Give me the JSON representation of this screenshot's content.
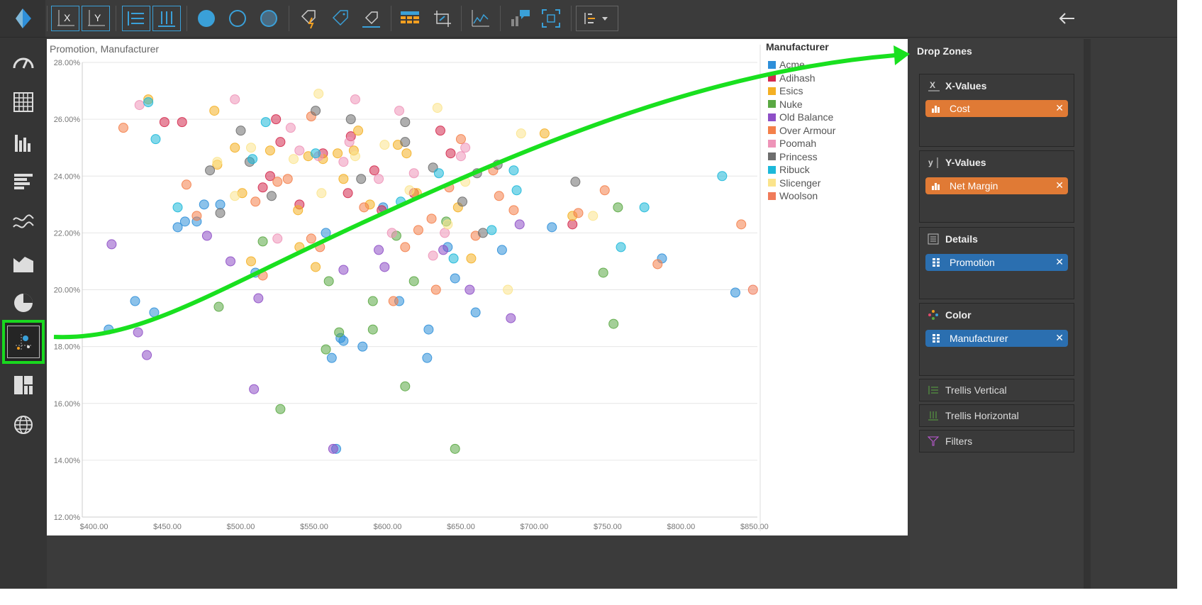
{
  "toolbar": {
    "buttons": [
      "x-axis-icon",
      "y-axis-icon",
      "trellis-rows-icon",
      "trellis-cols-icon",
      "filled-circle-icon",
      "hollow-circle-icon",
      "outlined-circle-icon",
      "tag-lightning-icon",
      "tag-icon",
      "tag-base-icon",
      "table-grid-icon",
      "crop-icon",
      "trend-icon",
      "chart-comment-icon",
      "fit-screen-icon",
      "sort-dropdown-icon"
    ],
    "back_icon": "back-arrow-icon"
  },
  "sidebar": {
    "items": [
      "gauge-icon",
      "grid-icon",
      "column-chart-icon",
      "bar-chart-icon",
      "wave-icon",
      "area-chart-icon",
      "pie-chart-icon",
      "scatter-chart-icon",
      "treemap-icon",
      "globe-icon"
    ],
    "active_index": 7
  },
  "chart": {
    "title": "Promotion, Manufacturer"
  },
  "chart_data": {
    "type": "scatter",
    "title": "Promotion, Manufacturer",
    "xlim": [
      392,
      852
    ],
    "ylim": [
      0.12,
      0.28
    ],
    "x_ticks": [
      "$400.00",
      "$450.00",
      "$500.00",
      "$550.00",
      "$600.00",
      "$650.00",
      "$700.00",
      "$750.00",
      "$800.00",
      "$850.00"
    ],
    "x_tick_values": [
      400,
      450,
      500,
      550,
      600,
      650,
      700,
      750,
      800,
      850
    ],
    "y_ticks": [
      "12.00%",
      "14.00%",
      "16.00%",
      "18.00%",
      "20.00%",
      "22.00%",
      "24.00%",
      "26.00%",
      "28.00%"
    ],
    "y_tick_values": [
      0.12,
      0.14,
      0.16,
      0.18,
      0.2,
      0.22,
      0.24,
      0.26,
      0.28
    ],
    "legend_title": "Manufacturer",
    "legend_position": "right",
    "series": [
      {
        "name": "Acme",
        "color": "#2e8fd9",
        "points": [
          [
            410,
            0.186
          ],
          [
            428,
            0.196
          ],
          [
            441,
            0.192
          ],
          [
            457,
            0.222
          ],
          [
            462,
            0.224
          ],
          [
            470,
            0.224
          ],
          [
            475,
            0.23
          ],
          [
            486,
            0.23
          ],
          [
            510,
            0.206
          ],
          [
            558,
            0.22
          ],
          [
            570,
            0.182
          ],
          [
            583,
            0.18
          ],
          [
            608,
            0.196
          ],
          [
            628,
            0.186
          ],
          [
            646,
            0.204
          ],
          [
            660,
            0.192
          ],
          [
            678,
            0.214
          ],
          [
            712,
            0.222
          ],
          [
            787,
            0.211
          ],
          [
            837,
            0.199
          ],
          [
            562,
            0.176
          ],
          [
            565,
            0.144
          ],
          [
            627,
            0.176
          ],
          [
            597,
            0.229
          ],
          [
            568,
            0.183
          ],
          [
            641,
            0.215
          ]
        ]
      },
      {
        "name": "Adihash",
        "color": "#d42a4e",
        "points": [
          [
            448,
            0.259
          ],
          [
            460,
            0.259
          ],
          [
            515,
            0.236
          ],
          [
            520,
            0.24
          ],
          [
            524,
            0.26
          ],
          [
            527,
            0.252
          ],
          [
            540,
            0.23
          ],
          [
            556,
            0.248
          ],
          [
            573,
            0.234
          ],
          [
            575,
            0.254
          ],
          [
            591,
            0.242
          ],
          [
            596,
            0.228
          ],
          [
            618,
            0.234
          ],
          [
            636,
            0.256
          ],
          [
            643,
            0.248
          ],
          [
            726,
            0.223
          ]
        ]
      },
      {
        "name": "Esics",
        "color": "#f4b024",
        "points": [
          [
            437,
            0.267
          ],
          [
            482,
            0.263
          ],
          [
            484,
            0.244
          ],
          [
            496,
            0.25
          ],
          [
            501,
            0.234
          ],
          [
            507,
            0.21
          ],
          [
            520,
            0.249
          ],
          [
            539,
            0.228
          ],
          [
            540,
            0.215
          ],
          [
            546,
            0.247
          ],
          [
            551,
            0.208
          ],
          [
            556,
            0.246
          ],
          [
            566,
            0.248
          ],
          [
            570,
            0.239
          ],
          [
            577,
            0.249
          ],
          [
            580,
            0.256
          ],
          [
            588,
            0.23
          ],
          [
            607,
            0.251
          ],
          [
            613,
            0.248
          ],
          [
            620,
            0.234
          ],
          [
            648,
            0.229
          ],
          [
            657,
            0.211
          ],
          [
            707,
            0.255
          ],
          [
            726,
            0.226
          ]
        ]
      },
      {
        "name": "Nuke",
        "color": "#5aa843",
        "points": [
          [
            485,
            0.194
          ],
          [
            515,
            0.217
          ],
          [
            527,
            0.158
          ],
          [
            558,
            0.179
          ],
          [
            560,
            0.203
          ],
          [
            567,
            0.185
          ],
          [
            590,
            0.186
          ],
          [
            590,
            0.196
          ],
          [
            606,
            0.219
          ],
          [
            612,
            0.166
          ],
          [
            618,
            0.203
          ],
          [
            640,
            0.224
          ],
          [
            646,
            0.144
          ],
          [
            747,
            0.206
          ],
          [
            754,
            0.188
          ],
          [
            757,
            0.229
          ]
        ]
      },
      {
        "name": "Old Balance",
        "color": "#8e4fc7",
        "points": [
          [
            412,
            0.216
          ],
          [
            430,
            0.185
          ],
          [
            436,
            0.177
          ],
          [
            477,
            0.219
          ],
          [
            493,
            0.21
          ],
          [
            509,
            0.165
          ],
          [
            512,
            0.197
          ],
          [
            563,
            0.144
          ],
          [
            570,
            0.207
          ],
          [
            594,
            0.214
          ],
          [
            598,
            0.208
          ],
          [
            638,
            0.214
          ],
          [
            656,
            0.2
          ],
          [
            684,
            0.19
          ],
          [
            690,
            0.223
          ]
        ]
      },
      {
        "name": "Over Armour",
        "color": "#f4804a",
        "points": [
          [
            420,
            0.257
          ],
          [
            463,
            0.237
          ],
          [
            470,
            0.226
          ],
          [
            510,
            0.231
          ],
          [
            515,
            0.205
          ],
          [
            525,
            0.238
          ],
          [
            532,
            0.239
          ],
          [
            548,
            0.261
          ],
          [
            548,
            0.218
          ],
          [
            554,
            0.215
          ],
          [
            584,
            0.229
          ],
          [
            604,
            0.196
          ],
          [
            612,
            0.215
          ],
          [
            621,
            0.221
          ],
          [
            630,
            0.225
          ],
          [
            633,
            0.2
          ],
          [
            642,
            0.236
          ],
          [
            650,
            0.253
          ],
          [
            660,
            0.219
          ],
          [
            672,
            0.242
          ],
          [
            676,
            0.233
          ],
          [
            686,
            0.228
          ],
          [
            730,
            0.227
          ],
          [
            748,
            0.235
          ],
          [
            784,
            0.209
          ],
          [
            841,
            0.223
          ]
        ]
      },
      {
        "name": "Poomah",
        "color": "#ee94b8",
        "points": [
          [
            431,
            0.265
          ],
          [
            496,
            0.267
          ],
          [
            525,
            0.218
          ],
          [
            534,
            0.257
          ],
          [
            540,
            0.249
          ],
          [
            553,
            0.247
          ],
          [
            570,
            0.245
          ],
          [
            574,
            0.252
          ],
          [
            578,
            0.267
          ],
          [
            594,
            0.239
          ],
          [
            603,
            0.22
          ],
          [
            608,
            0.263
          ],
          [
            618,
            0.241
          ],
          [
            631,
            0.212
          ],
          [
            639,
            0.22
          ],
          [
            650,
            0.247
          ],
          [
            653,
            0.25
          ]
        ]
      },
      {
        "name": "Princess",
        "color": "#6e6e6e",
        "points": [
          [
            479,
            0.242
          ],
          [
            486,
            0.227
          ],
          [
            500,
            0.256
          ],
          [
            506,
            0.245
          ],
          [
            521,
            0.233
          ],
          [
            551,
            0.263
          ],
          [
            575,
            0.26
          ],
          [
            582,
            0.239
          ],
          [
            612,
            0.252
          ],
          [
            612,
            0.259
          ],
          [
            631,
            0.243
          ],
          [
            651,
            0.231
          ],
          [
            661,
            0.241
          ],
          [
            665,
            0.22
          ],
          [
            675,
            0.244
          ],
          [
            728,
            0.238
          ]
        ]
      },
      {
        "name": "Ribuck",
        "color": "#1cb8d9",
        "points": [
          [
            437,
            0.266
          ],
          [
            442,
            0.253
          ],
          [
            457,
            0.229
          ],
          [
            508,
            0.246
          ],
          [
            517,
            0.259
          ],
          [
            551,
            0.248
          ],
          [
            609,
            0.231
          ],
          [
            635,
            0.241
          ],
          [
            645,
            0.211
          ],
          [
            671,
            0.221
          ],
          [
            686,
            0.242
          ],
          [
            688,
            0.235
          ],
          [
            759,
            0.215
          ],
          [
            775,
            0.229
          ],
          [
            828,
            0.24
          ]
        ]
      },
      {
        "name": "Slicenger",
        "color": "#fbe48c",
        "points": [
          [
            484,
            0.245
          ],
          [
            496,
            0.233
          ],
          [
            507,
            0.25
          ],
          [
            536,
            0.246
          ],
          [
            553,
            0.269
          ],
          [
            555,
            0.234
          ],
          [
            578,
            0.247
          ],
          [
            598,
            0.251
          ],
          [
            615,
            0.235
          ],
          [
            634,
            0.264
          ],
          [
            641,
            0.223
          ],
          [
            653,
            0.238
          ],
          [
            682,
            0.2
          ],
          [
            691,
            0.255
          ],
          [
            740,
            0.226
          ]
        ]
      },
      {
        "name": "Woolson",
        "color": "#f07b5a",
        "points": [
          [
            849,
            0.2
          ]
        ]
      }
    ]
  },
  "legend": {
    "title": "Manufacturer",
    "items": [
      {
        "label": "Acme",
        "color": "#2e8fd9"
      },
      {
        "label": "Adihash",
        "color": "#d42a4e"
      },
      {
        "label": "Esics",
        "color": "#f4b024"
      },
      {
        "label": "Nuke",
        "color": "#5aa843"
      },
      {
        "label": "Old Balance",
        "color": "#8e4fc7"
      },
      {
        "label": "Over Armour",
        "color": "#f4804a"
      },
      {
        "label": "Poomah",
        "color": "#ee94b8"
      },
      {
        "label": "Princess",
        "color": "#6e6e6e"
      },
      {
        "label": "Ribuck",
        "color": "#1cb8d9"
      },
      {
        "label": "Slicenger",
        "color": "#fbe48c"
      },
      {
        "label": "Woolson",
        "color": "#f07b5a"
      }
    ]
  },
  "dropzones": {
    "header": "Drop Zones",
    "x_values": {
      "title": "X-Values",
      "pill": "Cost",
      "pill_color": "#e07a35"
    },
    "y_values": {
      "title": "Y-Values",
      "pill": "Net Margin",
      "pill_color": "#e07a35"
    },
    "details": {
      "title": "Details",
      "pill": "Promotion",
      "pill_color": "#2b6fb0"
    },
    "color": {
      "title": "Color",
      "pill": "Manufacturer",
      "pill_color": "#2b6fb0"
    },
    "trellis_vertical": "Trellis Vertical",
    "trellis_horizontal": "Trellis Horizontal",
    "filters": "Filters",
    "close_glyph": "✕"
  },
  "annotation": {
    "arrow_color": "#19e01f",
    "highlight_color": "#19d81f"
  }
}
